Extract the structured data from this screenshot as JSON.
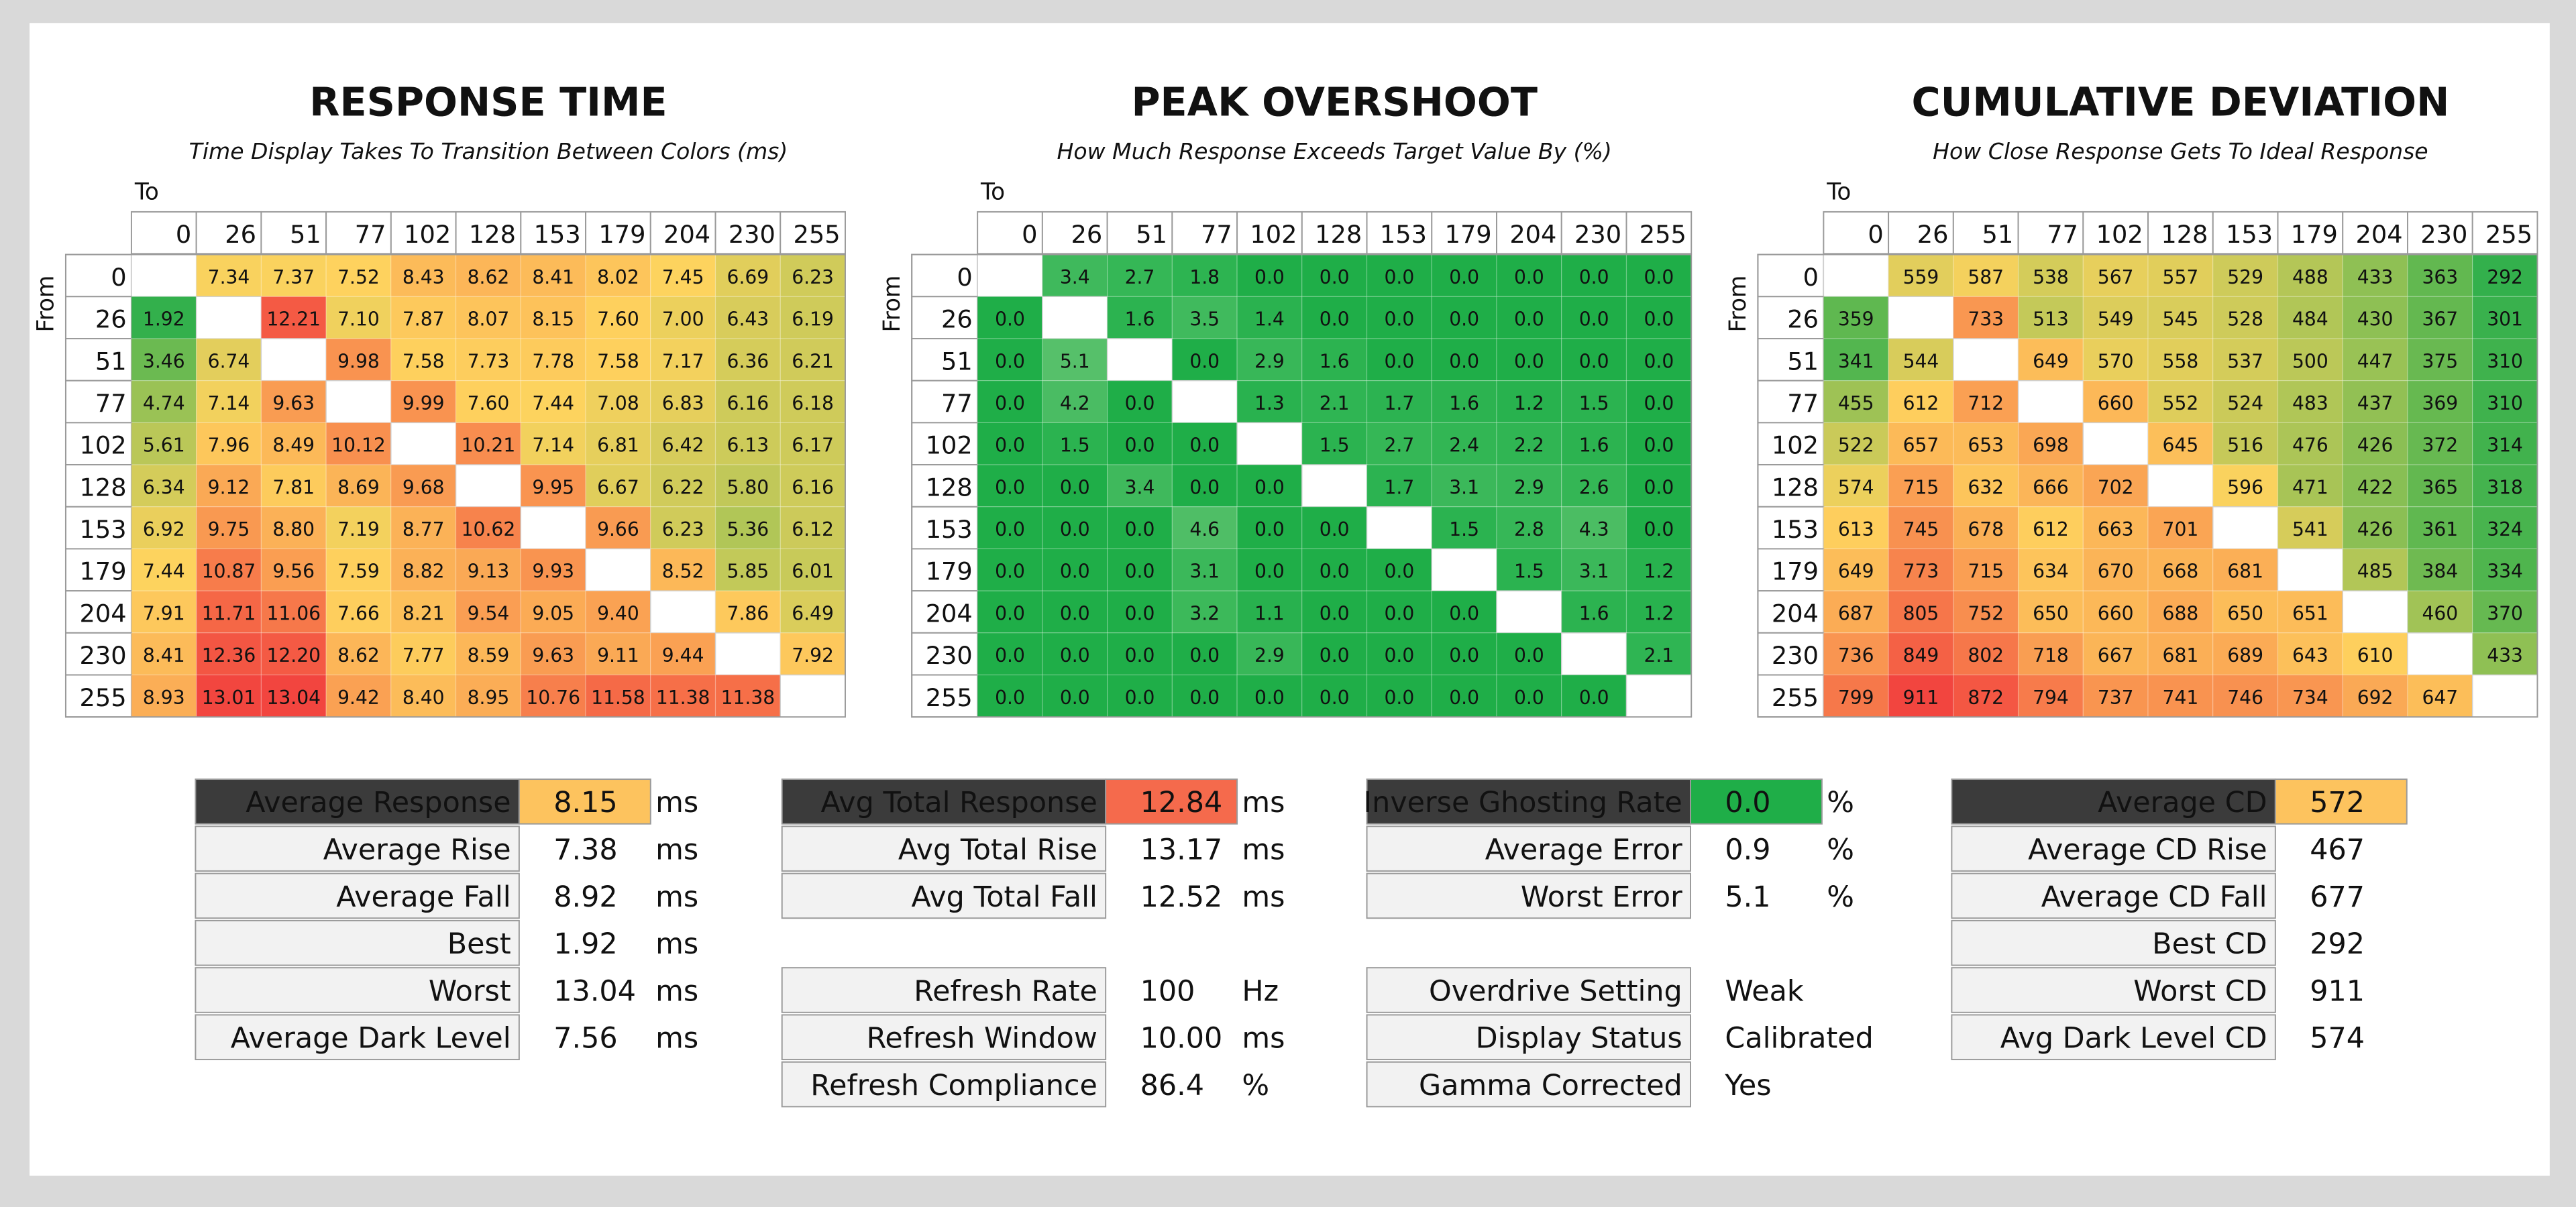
{
  "heatmaps": [
    {
      "title": "RESPONSE TIME",
      "subtitle": "Time Display Takes To Transition Between Colors (ms)",
      "to_label": "To",
      "from_label": "From",
      "columns": [
        "0",
        "26",
        "51",
        "77",
        "102",
        "128",
        "153",
        "179",
        "204",
        "230",
        "255"
      ],
      "color_scale": [
        "#33b04c",
        "#fed35e",
        "#f2453f"
      ],
      "rows": [
        {
          "label": "0",
          "cells": [
            null,
            "7.34",
            "7.37",
            "7.52",
            "8.43",
            "8.62",
            "8.41",
            "8.02",
            "7.45",
            "6.69",
            "6.23"
          ]
        },
        {
          "label": "26",
          "cells": [
            "1.92",
            null,
            "12.21",
            "7.10",
            "7.87",
            "8.07",
            "8.15",
            "7.60",
            "7.00",
            "6.43",
            "6.19"
          ]
        },
        {
          "label": "51",
          "cells": [
            "3.46",
            "6.74",
            null,
            "9.98",
            "7.58",
            "7.73",
            "7.78",
            "7.58",
            "7.17",
            "6.36",
            "6.21"
          ]
        },
        {
          "label": "77",
          "cells": [
            "4.74",
            "7.14",
            "9.63",
            null,
            "9.99",
            "7.60",
            "7.44",
            "7.08",
            "6.83",
            "6.16",
            "6.18"
          ]
        },
        {
          "label": "102",
          "cells": [
            "5.61",
            "7.96",
            "8.49",
            "10.12",
            null,
            "10.21",
            "7.14",
            "6.81",
            "6.42",
            "6.13",
            "6.17"
          ]
        },
        {
          "label": "128",
          "cells": [
            "6.34",
            "9.12",
            "7.81",
            "8.69",
            "9.68",
            null,
            "9.95",
            "6.67",
            "6.22",
            "5.80",
            "6.16"
          ]
        },
        {
          "label": "153",
          "cells": [
            "6.92",
            "9.75",
            "8.80",
            "7.19",
            "8.77",
            "10.62",
            null,
            "9.66",
            "6.23",
            "5.36",
            "6.12"
          ]
        },
        {
          "label": "179",
          "cells": [
            "7.44",
            "10.87",
            "9.56",
            "7.59",
            "8.82",
            "9.13",
            "9.93",
            null,
            "8.52",
            "5.85",
            "6.01"
          ]
        },
        {
          "label": "204",
          "cells": [
            "7.91",
            "11.71",
            "11.06",
            "7.66",
            "8.21",
            "9.54",
            "9.05",
            "9.40",
            null,
            "7.86",
            "6.49"
          ]
        },
        {
          "label": "230",
          "cells": [
            "8.41",
            "12.36",
            "12.20",
            "8.62",
            "7.77",
            "8.59",
            "9.63",
            "9.11",
            "9.44",
            null,
            "7.92"
          ]
        },
        {
          "label": "255",
          "cells": [
            "8.93",
            "13.01",
            "13.04",
            "9.42",
            "8.40",
            "8.95",
            "10.76",
            "11.58",
            "11.38",
            "11.38",
            null
          ]
        }
      ]
    },
    {
      "title": "PEAK OVERSHOOT",
      "subtitle": "How Much Response Exceeds Target Value By (%)",
      "to_label": "To",
      "from_label": "From",
      "columns": [
        "0",
        "26",
        "51",
        "77",
        "102",
        "128",
        "153",
        "179",
        "204",
        "230",
        "255"
      ],
      "color_scale": [
        "#1fae48",
        "#33b655",
        "#56c06a"
      ],
      "rows": [
        {
          "label": "0",
          "cells": [
            null,
            "3.4",
            "2.7",
            "1.8",
            "0.0",
            "0.0",
            "0.0",
            "0.0",
            "0.0",
            "0.0",
            "0.0"
          ]
        },
        {
          "label": "26",
          "cells": [
            "0.0",
            null,
            "1.6",
            "3.5",
            "1.4",
            "0.0",
            "0.0",
            "0.0",
            "0.0",
            "0.0",
            "0.0"
          ]
        },
        {
          "label": "51",
          "cells": [
            "0.0",
            "5.1",
            null,
            "0.0",
            "2.9",
            "1.6",
            "0.0",
            "0.0",
            "0.0",
            "0.0",
            "0.0"
          ]
        },
        {
          "label": "77",
          "cells": [
            "0.0",
            "4.2",
            "0.0",
            null,
            "1.3",
            "2.1",
            "1.7",
            "1.6",
            "1.2",
            "1.5",
            "0.0"
          ]
        },
        {
          "label": "102",
          "cells": [
            "0.0",
            "1.5",
            "0.0",
            "0.0",
            null,
            "1.5",
            "2.7",
            "2.4",
            "2.2",
            "1.6",
            "0.0"
          ]
        },
        {
          "label": "128",
          "cells": [
            "0.0",
            "0.0",
            "3.4",
            "0.0",
            "0.0",
            null,
            "1.7",
            "3.1",
            "2.9",
            "2.6",
            "0.0"
          ]
        },
        {
          "label": "153",
          "cells": [
            "0.0",
            "0.0",
            "0.0",
            "4.6",
            "0.0",
            "0.0",
            null,
            "1.5",
            "2.8",
            "4.3",
            "0.0"
          ]
        },
        {
          "label": "179",
          "cells": [
            "0.0",
            "0.0",
            "0.0",
            "3.1",
            "0.0",
            "0.0",
            "0.0",
            null,
            "1.5",
            "3.1",
            "1.2"
          ]
        },
        {
          "label": "204",
          "cells": [
            "0.0",
            "0.0",
            "0.0",
            "3.2",
            "1.1",
            "0.0",
            "0.0",
            "0.0",
            null,
            "1.6",
            "1.2"
          ]
        },
        {
          "label": "230",
          "cells": [
            "0.0",
            "0.0",
            "0.0",
            "0.0",
            "2.9",
            "0.0",
            "0.0",
            "0.0",
            "0.0",
            null,
            "2.1"
          ]
        },
        {
          "label": "255",
          "cells": [
            "0.0",
            "0.0",
            "0.0",
            "0.0",
            "0.0",
            "0.0",
            "0.0",
            "0.0",
            "0.0",
            "0.0",
            null
          ]
        }
      ]
    },
    {
      "title": "CUMULATIVE DEVIATION",
      "subtitle": "How Close Response Gets To Ideal Response",
      "to_label": "To",
      "from_label": "From",
      "columns": [
        "0",
        "26",
        "51",
        "77",
        "102",
        "128",
        "153",
        "179",
        "204",
        "230",
        "255"
      ],
      "color_scale": [
        "#33b04c",
        "#fed35e",
        "#f2453f"
      ],
      "rows": [
        {
          "label": "0",
          "cells": [
            null,
            "559",
            "587",
            "538",
            "567",
            "557",
            "529",
            "488",
            "433",
            "363",
            "292"
          ]
        },
        {
          "label": "26",
          "cells": [
            "359",
            null,
            "733",
            "513",
            "549",
            "545",
            "528",
            "484",
            "430",
            "367",
            "301"
          ]
        },
        {
          "label": "51",
          "cells": [
            "341",
            "544",
            null,
            "649",
            "570",
            "558",
            "537",
            "500",
            "447",
            "375",
            "310"
          ]
        },
        {
          "label": "77",
          "cells": [
            "455",
            "612",
            "712",
            null,
            "660",
            "552",
            "524",
            "483",
            "437",
            "369",
            "310"
          ]
        },
        {
          "label": "102",
          "cells": [
            "522",
            "657",
            "653",
            "698",
            null,
            "645",
            "516",
            "476",
            "426",
            "372",
            "314"
          ]
        },
        {
          "label": "128",
          "cells": [
            "574",
            "715",
            "632",
            "666",
            "702",
            null,
            "596",
            "471",
            "422",
            "365",
            "318"
          ]
        },
        {
          "label": "153",
          "cells": [
            "613",
            "745",
            "678",
            "612",
            "663",
            "701",
            null,
            "541",
            "426",
            "361",
            "324"
          ]
        },
        {
          "label": "179",
          "cells": [
            "649",
            "773",
            "715",
            "634",
            "670",
            "668",
            "681",
            null,
            "485",
            "384",
            "334"
          ]
        },
        {
          "label": "204",
          "cells": [
            "687",
            "805",
            "752",
            "650",
            "660",
            "688",
            "650",
            "651",
            null,
            "460",
            "370"
          ]
        },
        {
          "label": "230",
          "cells": [
            "736",
            "849",
            "802",
            "718",
            "667",
            "681",
            "689",
            "643",
            "610",
            null,
            "433"
          ]
        },
        {
          "label": "255",
          "cells": [
            "799",
            "911",
            "872",
            "794",
            "737",
            "741",
            "746",
            "734",
            "692",
            "647",
            null
          ]
        }
      ]
    }
  ],
  "summaries": [
    {
      "highlight_color": "#fdc35e",
      "groups": [
        [
          {
            "label": "Average Response",
            "value": "8.15",
            "unit": "ms"
          },
          {
            "label": "Average Rise",
            "value": "7.38",
            "unit": "ms"
          },
          {
            "label": "Average Fall",
            "value": "8.92",
            "unit": "ms"
          },
          {
            "label": "Best",
            "value": "1.92",
            "unit": "ms"
          },
          {
            "label": "Worst",
            "value": "13.04",
            "unit": "ms"
          },
          {
            "label": "Average Dark Level",
            "value": "7.56",
            "unit": "ms"
          }
        ]
      ]
    },
    {
      "highlight_color": "#f56a4c",
      "groups": [
        [
          {
            "label": "Avg Total Response",
            "value": "12.84",
            "unit": "ms"
          },
          {
            "label": "Avg Total Rise",
            "value": "13.17",
            "unit": "ms"
          },
          {
            "label": "Avg Total Fall",
            "value": "12.52",
            "unit": "ms"
          }
        ],
        [
          {
            "label": "Refresh Rate",
            "value": "100",
            "unit": "Hz"
          },
          {
            "label": "Refresh Window",
            "value": "10.00",
            "unit": "ms"
          },
          {
            "label": "Refresh Compliance",
            "value": "86.4",
            "unit": "%"
          }
        ]
      ]
    },
    {
      "highlight_color": "#1fae48",
      "groups": [
        [
          {
            "label": "Inverse Ghosting Rate",
            "value": "0.0",
            "unit": "%"
          },
          {
            "label": "Average Error",
            "value": "0.9",
            "unit": "%"
          },
          {
            "label": "Worst Error",
            "value": "5.1",
            "unit": "%"
          }
        ],
        [
          {
            "label": "Overdrive Setting",
            "value": "Weak"
          },
          {
            "label": "Display Status",
            "value": "Calibrated"
          },
          {
            "label": "Gamma Corrected",
            "value": "Yes"
          }
        ]
      ]
    },
    {
      "highlight_color": "#fdc35e",
      "groups": [
        [
          {
            "label": "Average CD",
            "value": "572"
          },
          {
            "label": "Average CD Rise",
            "value": "467"
          },
          {
            "label": "Average CD Fall",
            "value": "677"
          },
          {
            "label": "Best CD",
            "value": "292"
          },
          {
            "label": "Worst CD",
            "value": "911"
          },
          {
            "label": "Avg Dark Level CD",
            "value": "574"
          }
        ]
      ]
    }
  ]
}
